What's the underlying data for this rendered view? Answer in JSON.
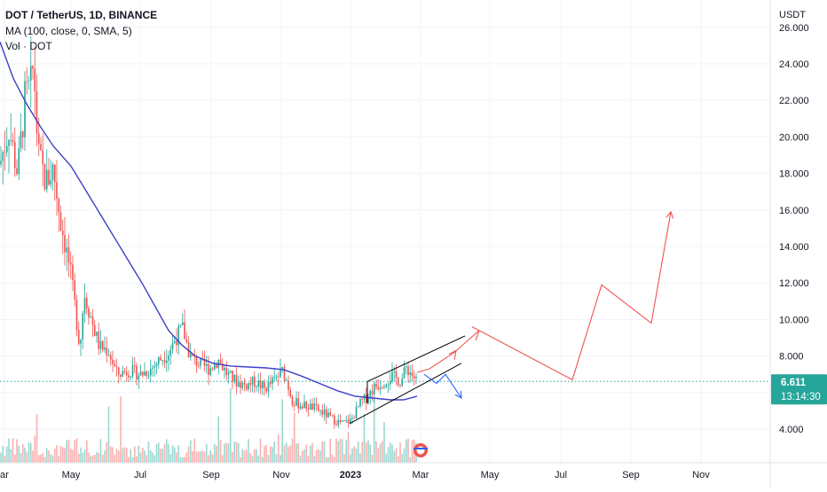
{
  "legend": {
    "symbol": "DOT / TetherUS, 1D, BINANCE",
    "ma": "MA (100, close, 0, SMA, 5)",
    "vol": "Vol · DOT"
  },
  "price_axis": {
    "unit": "USDT",
    "current_price": "6.611",
    "countdown": "13:14:30"
  },
  "colors": {
    "up": "#26a69a",
    "down": "#ef5350",
    "ma": "#3f3fc8",
    "projection": "#ef5350",
    "alt_projection": "#2962ff",
    "channel": "#000000",
    "price_tag": "#26a69a"
  },
  "chart_data": {
    "type": "candlestick",
    "y_ticks": [
      "4.000",
      "6.000",
      "8.000",
      "10.000",
      "12.000",
      "14.000",
      "16.000",
      "18.000",
      "20.000",
      "22.000",
      "24.000",
      "26.000"
    ],
    "x_ticks": [
      "ar",
      "May",
      "Jul",
      "Sep",
      "Nov",
      "2023",
      "Mar",
      "May",
      "Jul",
      "Sep",
      "Nov"
    ],
    "ylim": [
      2.5,
      26.5
    ],
    "price_path": [
      [
        0,
        18.5
      ],
      [
        10,
        20.5
      ],
      [
        20,
        18.0
      ],
      [
        28,
        22.0
      ],
      [
        35,
        22.8
      ],
      [
        38,
        24.0
      ],
      [
        43,
        19.0
      ],
      [
        52,
        17.5
      ],
      [
        60,
        18.3
      ],
      [
        68,
        15.5
      ],
      [
        78,
        13.0
      ],
      [
        85,
        10.5
      ],
      [
        90,
        8.5
      ],
      [
        95,
        11.5
      ],
      [
        103,
        10.0
      ],
      [
        112,
        8.5
      ],
      [
        122,
        8.3
      ],
      [
        132,
        7.0
      ],
      [
        145,
        7.2
      ],
      [
        158,
        7.0
      ],
      [
        170,
        7.3
      ],
      [
        180,
        7.8
      ],
      [
        190,
        8.2
      ],
      [
        198,
        9.0
      ],
      [
        206,
        9.5
      ],
      [
        214,
        8.0
      ],
      [
        226,
        7.5
      ],
      [
        236,
        7.3
      ],
      [
        246,
        7.8
      ],
      [
        256,
        7.0
      ],
      [
        266,
        6.6
      ],
      [
        276,
        6.4
      ],
      [
        288,
        6.6
      ],
      [
        298,
        6.2
      ],
      [
        310,
        6.7
      ],
      [
        318,
        7.2
      ],
      [
        322,
        6.8
      ],
      [
        330,
        5.5
      ],
      [
        340,
        5.3
      ],
      [
        352,
        5.2
      ],
      [
        364,
        4.9
      ],
      [
        376,
        4.5
      ],
      [
        386,
        4.3
      ],
      [
        396,
        4.5
      ],
      [
        406,
        5.4
      ],
      [
        414,
        5.8
      ],
      [
        422,
        6.3
      ],
      [
        432,
        6.6
      ],
      [
        442,
        6.9
      ],
      [
        452,
        6.6
      ],
      [
        458,
        7.4
      ],
      [
        464,
        7.0
      ],
      [
        470,
        6.6
      ]
    ],
    "ma_path": [
      [
        0,
        25.2
      ],
      [
        15,
        23.2
      ],
      [
        30,
        21.8
      ],
      [
        45,
        20.6
      ],
      [
        60,
        19.5
      ],
      [
        80,
        18.4
      ],
      [
        100,
        16.8
      ],
      [
        120,
        15.2
      ],
      [
        140,
        13.6
      ],
      [
        160,
        12.0
      ],
      [
        175,
        10.7
      ],
      [
        190,
        9.4
      ],
      [
        205,
        8.6
      ],
      [
        220,
        8.0
      ],
      [
        240,
        7.6
      ],
      [
        260,
        7.45
      ],
      [
        280,
        7.4
      ],
      [
        300,
        7.35
      ],
      [
        320,
        7.25
      ],
      [
        340,
        6.9
      ],
      [
        360,
        6.5
      ],
      [
        380,
        6.1
      ],
      [
        400,
        5.8
      ],
      [
        420,
        5.7
      ],
      [
        440,
        5.6
      ],
      [
        455,
        5.6
      ],
      [
        470,
        5.8
      ]
    ],
    "projection_path": [
      [
        470,
        7.1
      ],
      [
        484,
        7.3
      ],
      [
        512,
        8.2
      ],
      [
        526,
        8.8
      ],
      [
        540,
        9.4
      ],
      [
        645,
        6.7
      ],
      [
        678,
        11.9
      ],
      [
        734,
        9.8
      ],
      [
        756,
        15.9
      ]
    ],
    "alt_projection_path": [
      [
        478,
        7.0
      ],
      [
        492,
        6.5
      ],
      [
        502,
        7.0
      ],
      [
        520,
        5.7
      ]
    ],
    "channel_lines": [
      [
        [
          414,
          6.6
        ],
        [
          524,
          9.1
        ]
      ],
      [
        [
          394,
          4.3
        ],
        [
          520,
          7.6
        ]
      ]
    ],
    "current_price_value": 6.611,
    "grid": true
  }
}
